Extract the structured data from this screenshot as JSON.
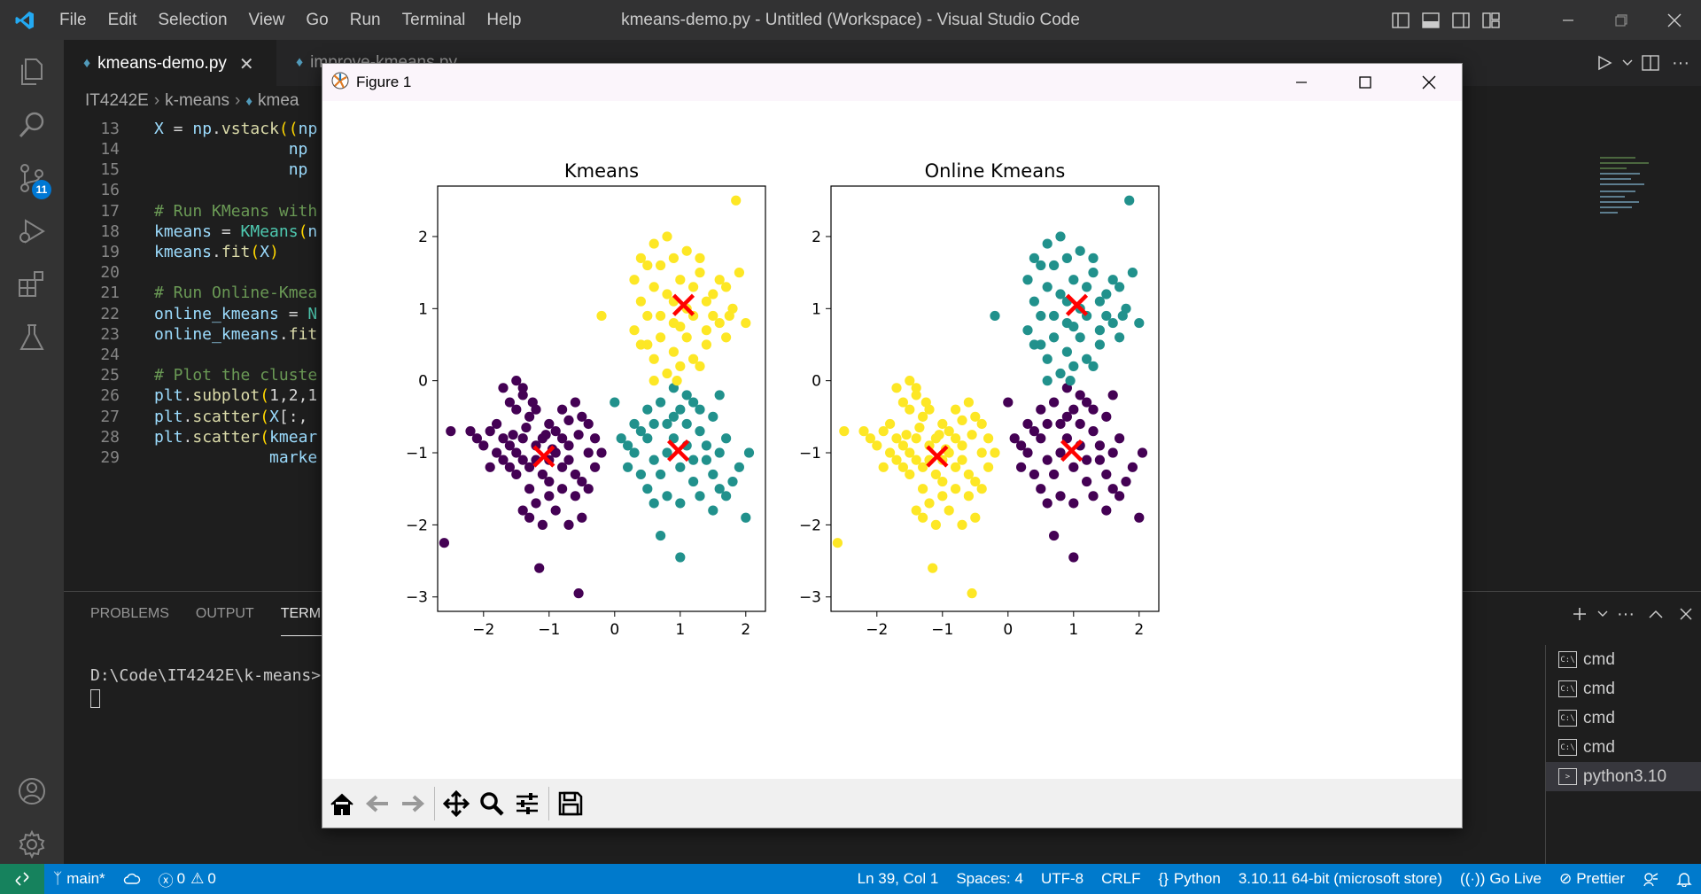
{
  "window": {
    "title": "kmeans-demo.py - Untitled (Workspace) - Visual Studio Code",
    "menus": [
      "File",
      "Edit",
      "Selection",
      "View",
      "Go",
      "Run",
      "Terminal",
      "Help"
    ]
  },
  "activity_bar": {
    "source_control_badge": "11"
  },
  "tabs": [
    {
      "label": "kmeans-demo.py",
      "active": true
    },
    {
      "label": "improve-kmeans.py",
      "active": false
    }
  ],
  "breadcrumb": [
    "IT4242E",
    "k-means",
    "kmea"
  ],
  "code_lines": [
    {
      "n": "13",
      "tokens": [
        [
          "vr",
          "X"
        ],
        [
          "pl",
          " = "
        ],
        [
          "vr",
          "np"
        ],
        [
          "pl",
          "."
        ],
        [
          "fn",
          "vstack"
        ],
        [
          "ye",
          "(("
        ],
        [
          "vr",
          "np"
        ]
      ]
    },
    {
      "n": "14",
      "tokens": [
        [
          "pl",
          "              "
        ],
        [
          "vr",
          "np"
        ]
      ]
    },
    {
      "n": "15",
      "tokens": [
        [
          "pl",
          "              "
        ],
        [
          "vr",
          "np"
        ]
      ]
    },
    {
      "n": "16",
      "tokens": []
    },
    {
      "n": "17",
      "tokens": [
        [
          "cm",
          "# Run KMeans with"
        ]
      ]
    },
    {
      "n": "18",
      "tokens": [
        [
          "vr",
          "kmeans"
        ],
        [
          "pl",
          " = "
        ],
        [
          "cl",
          "KMeans"
        ],
        [
          "ye",
          "("
        ],
        [
          "vr",
          "n"
        ]
      ]
    },
    {
      "n": "19",
      "tokens": [
        [
          "vr",
          "kmeans"
        ],
        [
          "pl",
          "."
        ],
        [
          "fn",
          "fit"
        ],
        [
          "ye",
          "("
        ],
        [
          "vr",
          "X"
        ],
        [
          "ye",
          ")"
        ]
      ]
    },
    {
      "n": "20",
      "tokens": []
    },
    {
      "n": "21",
      "tokens": [
        [
          "cm",
          "# Run Online-Kmea"
        ]
      ]
    },
    {
      "n": "22",
      "tokens": [
        [
          "vr",
          "online_kmeans"
        ],
        [
          "pl",
          " = "
        ],
        [
          "cl",
          "N"
        ]
      ]
    },
    {
      "n": "23",
      "tokens": [
        [
          "vr",
          "online_kmeans"
        ],
        [
          "pl",
          "."
        ],
        [
          "fn",
          "fit"
        ]
      ]
    },
    {
      "n": "24",
      "tokens": []
    },
    {
      "n": "25",
      "tokens": [
        [
          "cm",
          "# Plot the cluste"
        ]
      ]
    },
    {
      "n": "26",
      "tokens": [
        [
          "vr",
          "plt"
        ],
        [
          "pl",
          "."
        ],
        [
          "fn",
          "subplot"
        ],
        [
          "ye",
          "("
        ],
        [
          "pl",
          "1,2,1"
        ]
      ]
    },
    {
      "n": "27",
      "tokens": [
        [
          "vr",
          "plt"
        ],
        [
          "pl",
          "."
        ],
        [
          "fn",
          "scatter"
        ],
        [
          "ye",
          "("
        ],
        [
          "vr",
          "X"
        ],
        [
          "pl",
          "[:,"
        ]
      ]
    },
    {
      "n": "28",
      "tokens": [
        [
          "vr",
          "plt"
        ],
        [
          "pl",
          "."
        ],
        [
          "fn",
          "scatter"
        ],
        [
          "ye",
          "("
        ],
        [
          "vr",
          "kmear"
        ]
      ]
    },
    {
      "n": "29",
      "tokens": [
        [
          "pl",
          "            "
        ],
        [
          "vr",
          "marke"
        ]
      ]
    }
  ],
  "panel": {
    "tabs": [
      "PROBLEMS",
      "OUTPUT",
      "TERMI"
    ],
    "terminal_prompt": "D:\\Code\\IT4242E\\k-means>",
    "terminals": [
      {
        "label": "cmd",
        "icon": "C:\\",
        "selected": false
      },
      {
        "label": "cmd",
        "icon": "C:\\",
        "selected": false
      },
      {
        "label": "cmd",
        "icon": "C:\\",
        "selected": false
      },
      {
        "label": "cmd",
        "icon": "C:\\",
        "selected": false
      },
      {
        "label": "python3.10",
        "icon": ">",
        "selected": true
      }
    ]
  },
  "status_bar": {
    "branch": "main*",
    "errors": "0",
    "warnings": "0",
    "position": "Ln 39, Col 1",
    "spaces": "Spaces: 4",
    "encoding": "UTF-8",
    "eol": "CRLF",
    "language": "Python",
    "interpreter": "3.10.11 64-bit (microsoft store)",
    "go_live": "Go Live",
    "prettier": "Prettier"
  },
  "figure": {
    "title": "Figure 1"
  },
  "chart_data": [
    {
      "type": "scatter",
      "title": "Kmeans",
      "xlim": [
        -2.7,
        2.3
      ],
      "ylim": [
        -3.2,
        2.7
      ],
      "xticks": [
        -2,
        -1,
        0,
        1,
        2
      ],
      "yticks": [
        -3,
        -2,
        -1,
        0,
        1,
        2
      ],
      "tick_labels_x": [
        "−2",
        "−1",
        "0",
        "1",
        "2"
      ],
      "tick_labels_y": [
        "−3",
        "−2",
        "−1",
        "0",
        "1",
        "2"
      ],
      "colors": {
        "0": "#440154",
        "1": "#21918c",
        "2": "#fde725"
      },
      "centers": [
        {
          "x": -1.08,
          "y": -1.05
        },
        {
          "x": 0.97,
          "y": -0.97
        },
        {
          "x": 1.05,
          "y": 1.05
        }
      ],
      "center_color": "#ff0000",
      "series": [
        {
          "cluster": 0,
          "points": [
            [
              -2.5,
              -0.7
            ],
            [
              -2.2,
              -0.7
            ],
            [
              -2.1,
              -0.8
            ],
            [
              -2.0,
              -0.9
            ],
            [
              -1.9,
              -0.7
            ],
            [
              -1.8,
              -0.6
            ],
            [
              -1.7,
              -0.8
            ],
            [
              -1.6,
              -0.9
            ],
            [
              -1.5,
              -1.0
            ],
            [
              -1.4,
              -0.8
            ],
            [
              -1.3,
              -1.2
            ],
            [
              -1.2,
              -0.9
            ],
            [
              -1.1,
              -1.3
            ],
            [
              -1.0,
              -1.1
            ],
            [
              -0.9,
              -0.7
            ],
            [
              -0.8,
              -1.2
            ],
            [
              -0.7,
              -0.9
            ],
            [
              -0.6,
              -1.3
            ],
            [
              -0.5,
              -1.4
            ],
            [
              -0.4,
              -1.0
            ],
            [
              -1.5,
              -0.4
            ],
            [
              -1.4,
              -0.2
            ],
            [
              -1.3,
              -0.5
            ],
            [
              -1.6,
              -0.3
            ],
            [
              -1.7,
              -0.1
            ],
            [
              -1.5,
              0.0
            ],
            [
              -1.4,
              -0.1
            ],
            [
              -1.2,
              -0.4
            ],
            [
              -1.0,
              -0.6
            ],
            [
              -0.8,
              -0.4
            ],
            [
              -0.6,
              -0.3
            ],
            [
              -0.5,
              -0.5
            ],
            [
              -0.4,
              -0.6
            ],
            [
              -0.3,
              -0.8
            ],
            [
              -0.2,
              -1.0
            ],
            [
              -0.3,
              -1.2
            ],
            [
              -0.4,
              -1.5
            ],
            [
              -0.6,
              -1.6
            ],
            [
              -0.8,
              -1.5
            ],
            [
              -1.0,
              -1.6
            ],
            [
              -1.2,
              -1.7
            ],
            [
              -1.3,
              -1.5
            ],
            [
              -1.5,
              -1.3
            ],
            [
              -1.7,
              -1.1
            ],
            [
              -1.8,
              -1.0
            ],
            [
              -1.9,
              -1.2
            ],
            [
              -1.4,
              -1.8
            ],
            [
              -1.3,
              -1.9
            ],
            [
              -1.1,
              -2.0
            ],
            [
              -0.7,
              -2.0
            ],
            [
              -0.5,
              -1.9
            ],
            [
              -0.9,
              -1.8
            ],
            [
              -1.1,
              -0.8
            ],
            [
              -0.9,
              -1.0
            ],
            [
              -1.2,
              -1.1
            ],
            [
              -1.0,
              -1.4
            ],
            [
              -0.7,
              -1.1
            ],
            [
              -1.4,
              -1.1
            ],
            [
              -1.6,
              -1.2
            ],
            [
              -0.8,
              -0.8
            ],
            [
              -2.6,
              -2.25
            ],
            [
              -1.15,
              -2.6
            ],
            [
              -0.55,
              -2.95
            ],
            [
              -1.35,
              -0.65
            ],
            [
              -0.7,
              -0.55
            ],
            [
              -1.55,
              -0.75
            ],
            [
              -1.25,
              -0.3
            ],
            [
              -0.95,
              -0.95
            ],
            [
              -1.05,
              -0.75
            ],
            [
              -0.55,
              -0.75
            ]
          ]
        },
        {
          "cluster": 1,
          "points": [
            [
              0.0,
              -0.3
            ],
            [
              0.1,
              -0.8
            ],
            [
              0.2,
              -0.9
            ],
            [
              0.3,
              -1.0
            ],
            [
              0.4,
              -0.7
            ],
            [
              0.5,
              -0.8
            ],
            [
              0.6,
              -1.1
            ],
            [
              0.7,
              -1.3
            ],
            [
              0.8,
              -0.6
            ],
            [
              0.9,
              -0.5
            ],
            [
              1.0,
              -1.2
            ],
            [
              1.1,
              -0.9
            ],
            [
              1.2,
              -1.4
            ],
            [
              1.3,
              -0.7
            ],
            [
              1.4,
              -0.9
            ],
            [
              1.5,
              -1.3
            ],
            [
              1.6,
              -1.0
            ],
            [
              1.7,
              -0.8
            ],
            [
              1.8,
              -1.4
            ],
            [
              2.05,
              -1.0
            ],
            [
              0.5,
              -0.4
            ],
            [
              0.7,
              -0.3
            ],
            [
              0.9,
              -0.1
            ],
            [
              1.1,
              -0.2
            ],
            [
              1.3,
              -0.4
            ],
            [
              1.5,
              -0.5
            ],
            [
              1.6,
              -0.2
            ],
            [
              0.8,
              -1.6
            ],
            [
              1.0,
              -1.7
            ],
            [
              0.6,
              -1.7
            ],
            [
              1.3,
              -1.6
            ],
            [
              1.5,
              -1.8
            ],
            [
              1.7,
              -1.6
            ],
            [
              2.0,
              -1.9
            ],
            [
              0.7,
              -2.15
            ],
            [
              1.0,
              -2.45
            ],
            [
              0.4,
              -1.3
            ],
            [
              0.2,
              -1.2
            ],
            [
              1.2,
              -1.1
            ],
            [
              0.9,
              -0.8
            ],
            [
              1.1,
              -0.6
            ],
            [
              0.6,
              -0.6
            ],
            [
              1.4,
              -1.1
            ],
            [
              0.3,
              -0.6
            ],
            [
              0.8,
              -1.0
            ],
            [
              1.2,
              -0.3
            ],
            [
              1.0,
              -0.4
            ],
            [
              1.6,
              -1.5
            ],
            [
              1.9,
              -1.2
            ],
            [
              0.5,
              -1.5
            ]
          ]
        },
        {
          "cluster": 2,
          "points": [
            [
              -0.2,
              0.9
            ],
            [
              0.3,
              1.4
            ],
            [
              0.4,
              1.1
            ],
            [
              0.5,
              0.9
            ],
            [
              0.6,
              1.3
            ],
            [
              0.7,
              1.6
            ],
            [
              0.8,
              1.2
            ],
            [
              0.9,
              0.8
            ],
            [
              1.0,
              1.4
            ],
            [
              1.1,
              1.0
            ],
            [
              1.2,
              1.3
            ],
            [
              1.3,
              1.5
            ],
            [
              1.4,
              1.1
            ],
            [
              1.5,
              1.2
            ],
            [
              1.6,
              0.8
            ],
            [
              1.7,
              1.3
            ],
            [
              1.8,
              1.0
            ],
            [
              2.0,
              0.8
            ],
            [
              1.9,
              1.5
            ],
            [
              1.85,
              2.5
            ],
            [
              0.4,
              1.7
            ],
            [
              0.6,
              1.9
            ],
            [
              0.8,
              2.0
            ],
            [
              0.5,
              1.6
            ],
            [
              0.9,
              1.7
            ],
            [
              1.1,
              1.8
            ],
            [
              1.3,
              1.7
            ],
            [
              0.7,
              0.6
            ],
            [
              0.9,
              0.4
            ],
            [
              1.0,
              0.2
            ],
            [
              0.8,
              0.1
            ],
            [
              0.6,
              0.0
            ],
            [
              1.2,
              0.3
            ],
            [
              1.4,
              0.5
            ],
            [
              1.5,
              0.9
            ],
            [
              1.7,
              0.6
            ],
            [
              0.5,
              0.5
            ],
            [
              0.3,
              0.7
            ],
            [
              1.1,
              0.6
            ],
            [
              0.9,
              1.1
            ],
            [
              1.2,
              0.9
            ],
            [
              0.7,
              0.9
            ],
            [
              1.6,
              1.4
            ],
            [
              1.4,
              0.7
            ],
            [
              0.6,
              0.3
            ],
            [
              0.95,
              0.0
            ],
            [
              1.3,
              0.2
            ],
            [
              0.4,
              0.5
            ],
            [
              1.0,
              0.75
            ],
            [
              1.75,
              0.9
            ]
          ]
        }
      ]
    },
    {
      "type": "scatter",
      "title": "Online Kmeans",
      "xlim": [
        -2.7,
        2.3
      ],
      "ylim": [
        -3.2,
        2.7
      ],
      "xticks": [
        -2,
        -1,
        0,
        1,
        2
      ],
      "yticks": [
        -3,
        -2,
        -1,
        0,
        1,
        2
      ],
      "tick_labels_x": [
        "−2",
        "−1",
        "0",
        "1",
        "2"
      ],
      "tick_labels_y": [
        "−3",
        "−2",
        "−1",
        "0",
        "1",
        "2"
      ],
      "colors": {
        "0": "#fde725",
        "1": "#440154",
        "2": "#21918c"
      },
      "centers": [
        {
          "x": -1.08,
          "y": -1.05
        },
        {
          "x": 0.97,
          "y": -0.97
        },
        {
          "x": 1.05,
          "y": 1.05
        }
      ],
      "center_color": "#ff0000",
      "series_from": 0
    }
  ]
}
